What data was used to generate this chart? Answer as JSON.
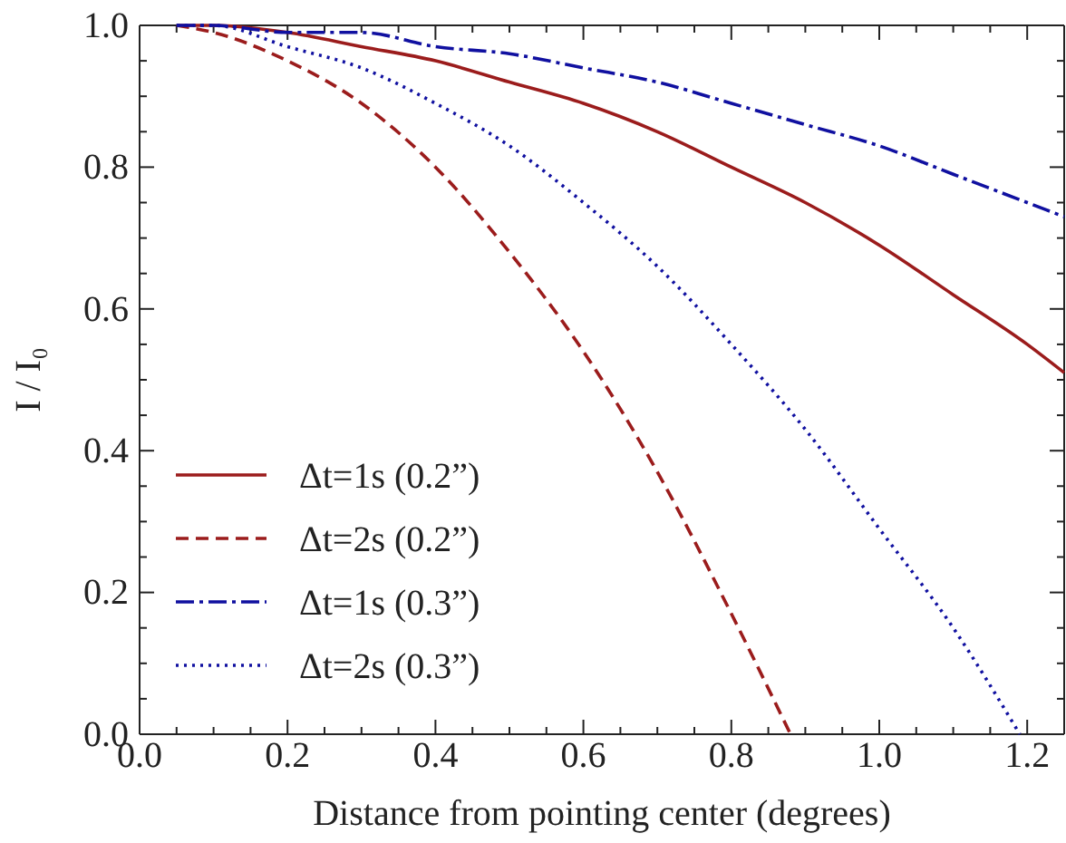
{
  "chart_data": {
    "type": "line",
    "xlabel": "Distance from pointing center (degrees)",
    "ylabel": "I / I₀",
    "xlim": [
      0,
      1.25
    ],
    "ylim": [
      0,
      1.0
    ],
    "xticks": [
      {
        "value": 0,
        "label": "0.0"
      },
      {
        "value": 0.05,
        "label": null
      },
      {
        "value": 0.1,
        "label": null
      },
      {
        "value": 0.15,
        "label": null
      },
      0.2,
      {
        "value": 0.25,
        "label": null
      },
      {
        "value": 0.3,
        "label": null
      },
      {
        "value": 0.35,
        "label": null
      },
      0.4,
      {
        "value": 0.45,
        "label": null
      },
      {
        "value": 0.5,
        "label": null
      },
      {
        "value": 0.55,
        "label": null
      },
      0.6,
      {
        "value": 0.65,
        "label": null
      },
      {
        "value": 0.7,
        "label": null
      },
      {
        "value": 0.75,
        "label": null
      },
      0.8,
      {
        "value": 0.85,
        "label": null
      },
      {
        "value": 0.9,
        "label": null
      },
      {
        "value": 0.95,
        "label": null
      },
      {
        "value": 1,
        "label": "1.0"
      },
      {
        "value": 1.05,
        "label": null
      },
      {
        "value": 1.1,
        "label": null
      },
      {
        "value": 1.15,
        "label": null
      },
      1.2
    ],
    "yticks": [
      {
        "value": 0,
        "label": "0.0"
      },
      {
        "value": 0.05,
        "label": null
      },
      {
        "value": 0.1,
        "label": null
      },
      {
        "value": 0.15,
        "label": null
      },
      0.2,
      {
        "value": 0.25,
        "label": null
      },
      {
        "value": 0.3,
        "label": null
      },
      {
        "value": 0.35,
        "label": null
      },
      0.4,
      {
        "value": 0.45,
        "label": null
      },
      {
        "value": 0.5,
        "label": null
      },
      {
        "value": 0.55,
        "label": null
      },
      0.6,
      {
        "value": 0.65,
        "label": null
      },
      {
        "value": 0.7,
        "label": null
      },
      {
        "value": 0.75,
        "label": null
      },
      0.8,
      {
        "value": 0.85,
        "label": null
      },
      {
        "value": 0.9,
        "label": null
      },
      {
        "value": 0.95,
        "label": null
      },
      {
        "value": 1,
        "label": "1.0"
      }
    ],
    "grid": false,
    "legend": "bottom left",
    "marker": "none",
    "series": [
      {
        "name": "Δt=1s (0.2”)",
        "color": "#9b1c1c",
        "line_style": "solid",
        "x": [
          0.05,
          0.1,
          0.2,
          0.3,
          0.4,
          0.5,
          0.6,
          0.7,
          0.8,
          0.9,
          1.0,
          1.1,
          1.2,
          1.25
        ],
        "values": [
          1.0,
          1.0,
          0.99,
          0.97,
          0.95,
          0.92,
          0.89,
          0.85,
          0.8,
          0.75,
          0.69,
          0.62,
          0.55,
          0.51
        ]
      },
      {
        "name": "Δt=2s (0.2”)",
        "color": "#9b1c1c",
        "line_style": "dashed",
        "x": [
          0.05,
          0.1,
          0.2,
          0.3,
          0.4,
          0.5,
          0.6,
          0.7,
          0.8,
          0.88
        ],
        "values": [
          1.0,
          0.99,
          0.95,
          0.89,
          0.8,
          0.68,
          0.54,
          0.37,
          0.17,
          0.0
        ]
      },
      {
        "name": "Δt=1s (0.3”)",
        "color": "#1010a0",
        "line_style": "dashdot",
        "x": [
          0.05,
          0.1,
          0.2,
          0.3,
          0.4,
          0.5,
          0.6,
          0.7,
          0.8,
          0.9,
          1.0,
          1.1,
          1.2,
          1.25
        ],
        "values": [
          1.0,
          1.0,
          0.99,
          0.99,
          0.97,
          0.96,
          0.94,
          0.92,
          0.89,
          0.86,
          0.83,
          0.79,
          0.75,
          0.73
        ]
      },
      {
        "name": "Δt=2s (0.3”)",
        "color": "#1010a0",
        "line_style": "dotted",
        "x": [
          0.05,
          0.1,
          0.2,
          0.3,
          0.4,
          0.5,
          0.6,
          0.7,
          0.8,
          0.9,
          1.0,
          1.1,
          1.19
        ],
        "values": [
          1.0,
          1.0,
          0.97,
          0.94,
          0.89,
          0.83,
          0.75,
          0.66,
          0.55,
          0.43,
          0.29,
          0.15,
          0.0
        ]
      }
    ]
  }
}
